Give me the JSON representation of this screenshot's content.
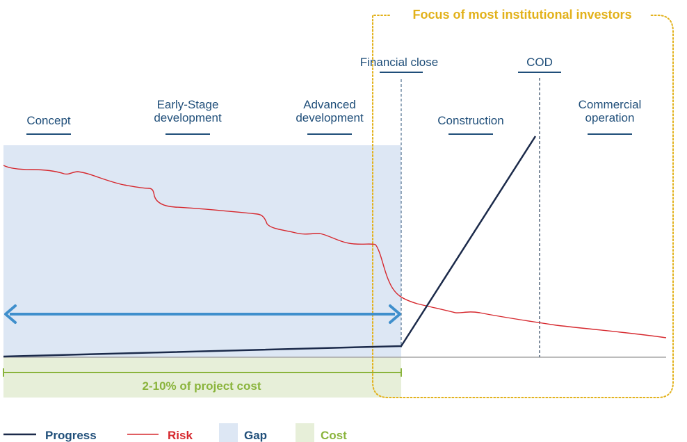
{
  "focus": {
    "title": "Focus of most institutional investors"
  },
  "stages": [
    {
      "lines": [
        "Concept"
      ]
    },
    {
      "lines": [
        "Early-Stage",
        "development"
      ]
    },
    {
      "lines": [
        "Advanced",
        "development"
      ]
    },
    {
      "lines": [
        "Construction"
      ]
    },
    {
      "lines": [
        "Commercial",
        "operation"
      ]
    }
  ],
  "milestones": {
    "financial_close": "Financial close",
    "cod": "COD"
  },
  "cost": {
    "label": "2-10% of project cost"
  },
  "legend": [
    {
      "label": "Progress",
      "color": "#1b2a4a",
      "kind": "line"
    },
    {
      "label": "Risk",
      "color": "#d6282e",
      "kind": "line"
    },
    {
      "label": "Gap",
      "color": "#dde7f4",
      "kind": "box"
    },
    {
      "label": "Cost",
      "color": "#e7efd9",
      "kind": "box"
    }
  ],
  "colors": {
    "progress": "#1b2a4a",
    "risk": "#d6282e",
    "gap": "#dde7f4",
    "cost": "#e7efd9",
    "arrow": "#3f8fcc",
    "focus": "#e2b11a",
    "label": "#1f4e79",
    "cost_line": "#8ab43c"
  }
}
